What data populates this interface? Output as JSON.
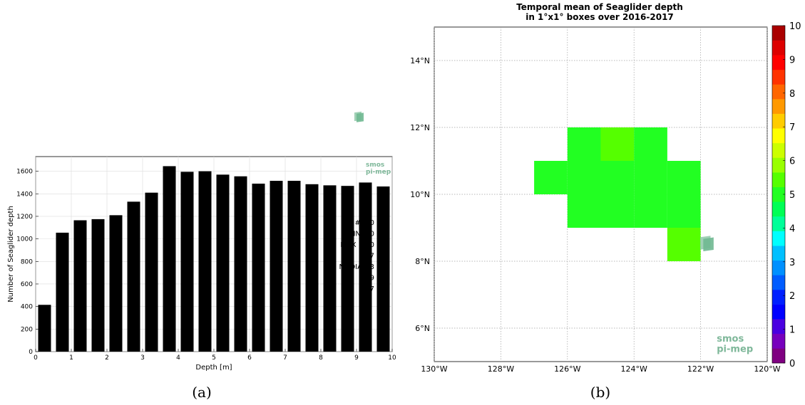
{
  "chart_data": [
    {
      "type": "bar",
      "panel_caption": "(a)",
      "xlabel": "Depth [m]",
      "ylabel": "Number of Seaglider depth",
      "xlim": [
        0,
        10
      ],
      "ylim": [
        0,
        1730
      ],
      "xticks": [
        "0",
        "1",
        "2",
        "3",
        "4",
        "5",
        "6",
        "7",
        "8",
        "9",
        "10"
      ],
      "yticks": [
        "0",
        "200",
        "400",
        "600",
        "800",
        "1000",
        "1200",
        "1400",
        "1600"
      ],
      "grid": true,
      "bar_centers": [
        0.25,
        0.75,
        1.25,
        1.75,
        2.25,
        2.75,
        3.25,
        3.75,
        4.25,
        4.75,
        5.25,
        5.75,
        6.25,
        6.75,
        7.25,
        7.75,
        8.25,
        8.75,
        9.25,
        9.75
      ],
      "values": [
        415,
        1055,
        1165,
        1175,
        1210,
        1330,
        1410,
        1645,
        1595,
        1600,
        1570,
        1555,
        1490,
        1515,
        1515,
        1485,
        1475,
        1470,
        1500,
        1465
      ],
      "stats_partial": [
        "#   7   0",
        "MIN   0 0",
        "MAX  10 0",
        "A      7",
        "MEDIAN  3",
        "T     9",
        "Q     7"
      ],
      "logo": {
        "line1": "smos",
        "line2": "pi-mep"
      }
    },
    {
      "type": "heatmap",
      "panel_caption": "(b)",
      "title": "Temporal mean of Seaglider depth",
      "subtitle": "in 1°x1° boxes over 2016-2017",
      "x_range_deg_w": [
        130,
        120
      ],
      "y_range_deg_n": [
        5,
        15
      ],
      "xticks": [
        "130°W",
        "128°W",
        "126°W",
        "124°W",
        "122°W",
        "120°W"
      ],
      "yticks": [
        "6°N",
        "8°N",
        "10°N",
        "12°N",
        "14°N"
      ],
      "grid": true,
      "cells": [
        {
          "lon_w": [
            126,
            125
          ],
          "lat_n": [
            11,
            12
          ],
          "value": 5.0
        },
        {
          "lon_w": [
            125,
            124
          ],
          "lat_n": [
            11,
            12
          ],
          "value": 5.6
        },
        {
          "lon_w": [
            124,
            123
          ],
          "lat_n": [
            11,
            12
          ],
          "value": 5.0
        },
        {
          "lon_w": [
            127,
            126
          ],
          "lat_n": [
            10,
            11
          ],
          "value": 4.9
        },
        {
          "lon_w": [
            126,
            125
          ],
          "lat_n": [
            10,
            11
          ],
          "value": 5.0
        },
        {
          "lon_w": [
            125,
            124
          ],
          "lat_n": [
            10,
            11
          ],
          "value": 5.0
        },
        {
          "lon_w": [
            124,
            123
          ],
          "lat_n": [
            10,
            11
          ],
          "value": 5.0
        },
        {
          "lon_w": [
            123,
            122
          ],
          "lat_n": [
            10,
            11
          ],
          "value": 5.0
        },
        {
          "lon_w": [
            126,
            125
          ],
          "lat_n": [
            9,
            10
          ],
          "value": 5.0
        },
        {
          "lon_w": [
            125,
            124
          ],
          "lat_n": [
            9,
            10
          ],
          "value": 5.0
        },
        {
          "lon_w": [
            124,
            123
          ],
          "lat_n": [
            9,
            10
          ],
          "value": 5.0
        },
        {
          "lon_w": [
            123,
            122
          ],
          "lat_n": [
            9,
            10
          ],
          "value": 5.0
        },
        {
          "lon_w": [
            123,
            122
          ],
          "lat_n": [
            8,
            9
          ],
          "value": 5.6
        }
      ],
      "colorbar": {
        "range": [
          0,
          10
        ],
        "ticks": [
          "0",
          "1",
          "2",
          "3",
          "4",
          "5",
          "6",
          "7",
          "8",
          "9",
          "10"
        ],
        "colors": [
          "#7f0081",
          "#7700bd",
          "#4a00e0",
          "#0000ff",
          "#0020ff",
          "#005cff",
          "#0090ff",
          "#00c0ff",
          "#00ffff",
          "#00ff99",
          "#00ff55",
          "#22ff22",
          "#55ff00",
          "#99ff00",
          "#ccff00",
          "#ffff00",
          "#ffcc00",
          "#ff9900",
          "#ff6600",
          "#ff3300",
          "#ff0000",
          "#dd0000",
          "#aa0000"
        ]
      },
      "logo": {
        "line1": "smos",
        "line2": "pi-mep"
      }
    }
  ]
}
